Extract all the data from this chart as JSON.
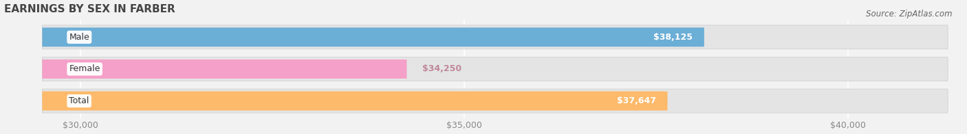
{
  "title": "EARNINGS BY SEX IN FARBER",
  "source": "Source: ZipAtlas.com",
  "categories": [
    "Male",
    "Female",
    "Total"
  ],
  "values": [
    38125,
    34250,
    37647
  ],
  "bar_colors": [
    "#6BAED6",
    "#F4A0C8",
    "#FDBA6B"
  ],
  "bar_labels": [
    "$38,125",
    "$34,250",
    "$37,647"
  ],
  "label_inside": [
    true,
    false,
    true
  ],
  "label_text_colors": [
    "white",
    "#c0889a",
    "white"
  ],
  "xlim": [
    29000,
    41500
  ],
  "xstart": 29500,
  "xticks": [
    30000,
    35000,
    40000
  ],
  "xtick_labels": [
    "$30,000",
    "$35,000",
    "$40,000"
  ],
  "background_color": "#f2f2f2",
  "bar_bg_color": "#e4e4e4",
  "title_fontsize": 11,
  "label_fontsize": 9,
  "tick_fontsize": 9,
  "source_fontsize": 8.5,
  "category_fontsize": 9
}
